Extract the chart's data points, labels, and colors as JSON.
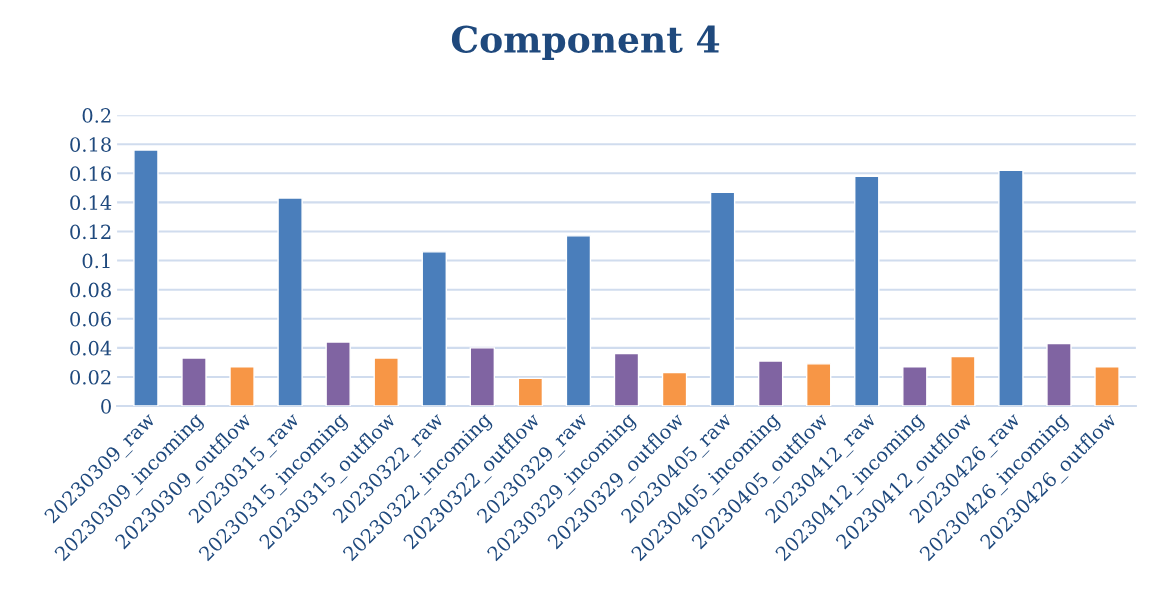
{
  "chart_data": {
    "type": "bar",
    "title": "Component 4",
    "categories": [
      "20230309_raw",
      "20230309_incoming",
      "20230309_outflow",
      "20230315_raw",
      "20230315_incoming",
      "20230315_outflow",
      "20230322_raw",
      "20230322_incoming",
      "20230322_outflow",
      "20230329_raw",
      "20230329_incoming",
      "20230329_outflow",
      "20230405_raw",
      "20230405_incoming",
      "20230405_outflow",
      "20230412_raw",
      "20230412_incoming",
      "20230412_outflow",
      "20230426_raw",
      "20230426_incoming",
      "20230426_outflow"
    ],
    "values": [
      0.176,
      0.033,
      0.027,
      0.143,
      0.044,
      0.033,
      0.106,
      0.04,
      0.019,
      0.117,
      0.036,
      0.023,
      0.147,
      0.031,
      0.029,
      0.158,
      0.027,
      0.034,
      0.162,
      0.043,
      0.027
    ],
    "colors": [
      "#4a7ebb",
      "#8064a2",
      "#f79646",
      "#4a7ebb",
      "#8064a2",
      "#f79646",
      "#4a7ebb",
      "#8064a2",
      "#f79646",
      "#4a7ebb",
      "#8064a2",
      "#f79646",
      "#4a7ebb",
      "#8064a2",
      "#f79646",
      "#4a7ebb",
      "#8064a2",
      "#f79646",
      "#4a7ebb",
      "#8064a2",
      "#f79646"
    ],
    "ylim": [
      0,
      0.2
    ],
    "yticks": [
      0,
      0.02,
      0.04,
      0.06,
      0.08,
      0.1,
      0.12,
      0.14,
      0.16,
      0.18,
      0.2
    ],
    "grid": "y"
  }
}
